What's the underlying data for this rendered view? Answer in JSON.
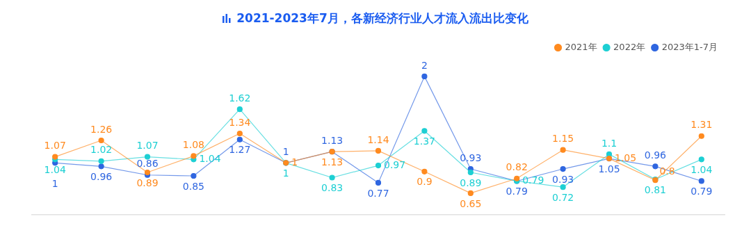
{
  "chart_data": {
    "type": "line",
    "title": "2021-2023年7月，各新经济行业人才流入流出比变化",
    "categories": [
      null,
      null,
      null,
      null,
      null,
      null,
      null,
      null,
      null,
      null,
      null,
      null,
      null,
      null,
      null
    ],
    "series": [
      {
        "name": "2021年",
        "color": "#ff8a1f",
        "values": [
          1.07,
          1.26,
          0.89,
          1.08,
          1.34,
          1,
          1.13,
          1.14,
          0.9,
          0.65,
          0.82,
          1.15,
          1.05,
          0.8,
          1.31
        ]
      },
      {
        "name": "2022年",
        "color": "#1dcfd3",
        "values": [
          1.04,
          1.02,
          1.07,
          1.04,
          1.62,
          1,
          0.83,
          0.97,
          1.37,
          0.89,
          0.79,
          0.72,
          1.1,
          0.81,
          1.04
        ]
      },
      {
        "name": "2023年1-7月",
        "color": "#2f66e0",
        "values": [
          1,
          0.96,
          0.86,
          0.85,
          1.27,
          1,
          1.13,
          0.77,
          2,
          0.93,
          0.79,
          0.93,
          1.05,
          0.96,
          0.79
        ]
      }
    ],
    "tick_labels": false,
    "grid": false,
    "legend": "top right",
    "marker": "circle",
    "line_style": "solid",
    "data_labels": true
  }
}
